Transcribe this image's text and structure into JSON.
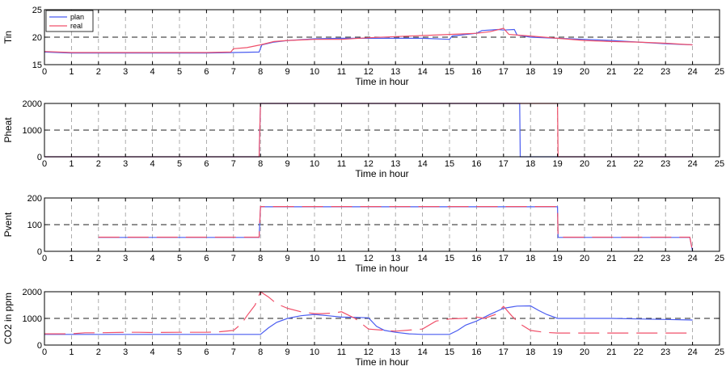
{
  "colors": {
    "plan": "#4a5cf0",
    "real": "#f0506a",
    "grid": "#9a9a9a",
    "axis": "#000000"
  },
  "chart_data": [
    {
      "type": "line",
      "ylabel": "Tin",
      "xlabel": "Time in hour",
      "xlim": [
        0,
        25
      ],
      "ylim": [
        15,
        25
      ],
      "xticks": [
        0,
        1,
        2,
        3,
        4,
        5,
        6,
        7,
        8,
        9,
        10,
        11,
        12,
        13,
        14,
        15,
        16,
        17,
        18,
        19,
        20,
        21,
        22,
        23,
        24,
        25
      ],
      "yticks": [
        15,
        20,
        25
      ],
      "hgrid": [
        20
      ],
      "legend": {
        "position": "top-left",
        "entries": [
          "plan",
          "real"
        ]
      },
      "series": [
        {
          "name": "plan",
          "key": "plan",
          "dash": false,
          "x": [
            0,
            1,
            2,
            3,
            4,
            5,
            6,
            7,
            7.95,
            8.05,
            8.5,
            9,
            10,
            11,
            12,
            13,
            14,
            15,
            15.1,
            16,
            16.2,
            16.8,
            17,
            17.4,
            17.5,
            18,
            19,
            20,
            21,
            22,
            23,
            24
          ],
          "y": [
            17.3,
            17.1,
            17.1,
            17.1,
            17.1,
            17.1,
            17.1,
            17.2,
            17.3,
            18.6,
            19.1,
            19.4,
            19.7,
            19.8,
            19.8,
            19.8,
            19.8,
            19.6,
            20.2,
            20.7,
            21.2,
            21.4,
            21.3,
            21.4,
            20.4,
            20.0,
            19.8,
            19.6,
            19.4,
            19.1,
            18.8,
            18.6
          ]
        },
        {
          "name": "real",
          "key": "real",
          "dash": false,
          "x": [
            0,
            1,
            2,
            3,
            4,
            5,
            6,
            6.9,
            7,
            7.5,
            8,
            8.5,
            9,
            10,
            11,
            12,
            13,
            14,
            15,
            16,
            16.5,
            17,
            17.2,
            18,
            19,
            20,
            21,
            22,
            23,
            24
          ],
          "y": [
            17.4,
            17.2,
            17.2,
            17.2,
            17.2,
            17.2,
            17.2,
            17.3,
            17.9,
            18.1,
            18.6,
            19.2,
            19.4,
            19.6,
            19.6,
            19.9,
            20.1,
            20.3,
            20.5,
            20.7,
            21.0,
            21.6,
            20.5,
            20.2,
            19.8,
            19.4,
            19.2,
            19.1,
            18.9,
            18.6
          ]
        }
      ]
    },
    {
      "type": "line",
      "ylabel": "Pheat",
      "xlabel": "Time in hour",
      "xlim": [
        0,
        25
      ],
      "ylim": [
        0,
        2000
      ],
      "xticks": [
        0,
        1,
        2,
        3,
        4,
        5,
        6,
        7,
        8,
        9,
        10,
        11,
        12,
        13,
        14,
        15,
        16,
        17,
        18,
        19,
        20,
        21,
        22,
        23,
        24,
        25
      ],
      "yticks": [
        0,
        1000,
        2000
      ],
      "hgrid": [
        1000
      ],
      "series": [
        {
          "name": "plan",
          "key": "plan",
          "dash": false,
          "x": [
            0,
            7.95,
            8,
            17.6,
            17.62,
            24
          ],
          "y": [
            0,
            0,
            2000,
            2000,
            0,
            0
          ]
        },
        {
          "name": "real",
          "key": "real",
          "dash": false,
          "x": [
            0,
            7.95,
            8,
            19,
            19.02,
            24
          ],
          "y": [
            0,
            0,
            2000,
            2000,
            0,
            0
          ]
        }
      ]
    },
    {
      "type": "line",
      "ylabel": "Pvent",
      "xlabel": "Time in hour",
      "xlim": [
        0,
        25
      ],
      "ylim": [
        0,
        200
      ],
      "xticks": [
        0,
        1,
        2,
        3,
        4,
        5,
        6,
        7,
        8,
        9,
        10,
        11,
        12,
        13,
        14,
        15,
        16,
        17,
        18,
        19,
        20,
        21,
        22,
        23,
        24,
        25
      ],
      "yticks": [
        0,
        100,
        200
      ],
      "hgrid": [
        100
      ],
      "series": [
        {
          "name": "plan",
          "key": "plan",
          "dash": false,
          "x": [
            2,
            7.95,
            8,
            19,
            19.02,
            23.9,
            24
          ],
          "y": [
            52,
            52,
            167,
            167,
            52,
            52,
            0
          ]
        },
        {
          "name": "real",
          "key": "real",
          "dash": true,
          "x": [
            2,
            7.95,
            8,
            19,
            19.02,
            23.9,
            24
          ],
          "y": [
            53,
            53,
            168,
            168,
            53,
            53,
            0
          ]
        }
      ]
    },
    {
      "type": "line",
      "ylabel": "CO2 in ppm",
      "xlabel": "Time in hour",
      "xlim": [
        0,
        25
      ],
      "ylim": [
        0,
        2000
      ],
      "xticks": [
        0,
        1,
        2,
        3,
        4,
        5,
        6,
        7,
        8,
        9,
        10,
        11,
        12,
        13,
        14,
        15,
        16,
        17,
        18,
        19,
        20,
        21,
        22,
        23,
        24,
        25
      ],
      "yticks": [
        0,
        1000,
        2000
      ],
      "hgrid": [
        1000
      ],
      "series": [
        {
          "name": "plan",
          "key": "plan",
          "dash": false,
          "x": [
            0,
            1,
            2,
            3,
            4,
            5,
            6,
            7,
            8,
            8.3,
            8.6,
            9,
            9.5,
            10,
            10.5,
            11,
            11.5,
            12,
            12.3,
            12.6,
            13,
            13.5,
            14,
            15,
            15.3,
            15.6,
            16,
            16.5,
            17,
            17.5,
            18,
            18.3,
            18.6,
            19,
            20,
            21,
            22,
            23,
            24
          ],
          "y": [
            400,
            400,
            400,
            400,
            400,
            400,
            400,
            400,
            400,
            650,
            850,
            1000,
            1100,
            1150,
            1100,
            1050,
            1040,
            1020,
            700,
            550,
            480,
            420,
            400,
            400,
            550,
            750,
            900,
            1150,
            1380,
            1460,
            1470,
            1300,
            1150,
            1000,
            1000,
            1000,
            980,
            960,
            940
          ]
        },
        {
          "name": "real",
          "key": "real",
          "dash": true,
          "x": [
            0,
            1,
            1.5,
            2,
            3,
            3.5,
            4,
            5,
            5.5,
            6,
            6.5,
            7,
            7.3,
            7.5,
            7.8,
            8,
            8.3,
            8.6,
            9,
            9.5,
            10,
            10.3,
            10.7,
            11,
            11.5,
            12,
            12.5,
            13,
            13.5,
            14,
            14.5,
            15,
            15.5,
            16,
            16.3,
            16.7,
            17,
            17.3,
            17.6,
            18,
            18.5,
            19,
            20,
            21,
            22,
            23,
            24
          ],
          "y": [
            420,
            420,
            460,
            460,
            480,
            480,
            470,
            480,
            480,
            480,
            500,
            550,
            800,
            1100,
            1500,
            2000,
            1800,
            1550,
            1380,
            1250,
            1180,
            1180,
            1200,
            1250,
            1000,
            600,
            560,
            520,
            560,
            600,
            900,
            980,
            1000,
            1050,
            1000,
            1150,
            1450,
            1100,
            800,
            550,
            480,
            450,
            450,
            450,
            450,
            450,
            450
          ]
        }
      ]
    }
  ]
}
